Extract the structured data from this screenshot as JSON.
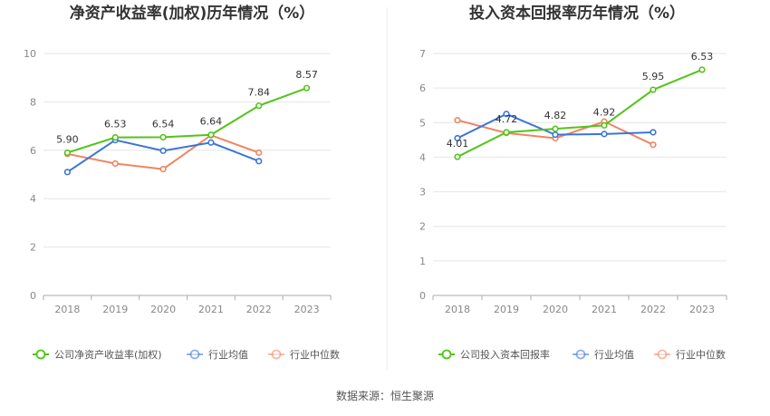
{
  "source_label": "数据来源：恒生聚源",
  "colors": {
    "company": "#52c41a",
    "average": "#3a75d9",
    "median": "#f0845f"
  },
  "chart_data": [
    {
      "type": "line",
      "title": "净资产收益率(加权)历年情况（%）",
      "categories": [
        "2018",
        "2019",
        "2020",
        "2021",
        "2022",
        "2023"
      ],
      "ylim": [
        0,
        10
      ],
      "yticks": [
        0,
        2,
        4,
        6,
        8,
        10
      ],
      "grid": true,
      "legend_position": "bottom",
      "series": [
        {
          "name": "公司净资产收益率(加权)",
          "role": "company",
          "values": [
            5.9,
            6.53,
            6.54,
            6.64,
            7.84,
            8.57
          ],
          "labels": [
            "5.90",
            "6.53",
            "6.54",
            "6.64",
            "7.84",
            "8.57"
          ]
        },
        {
          "name": "行业均值",
          "role": "average",
          "values": [
            5.1,
            6.42,
            5.98,
            6.32,
            5.55,
            null
          ]
        },
        {
          "name": "行业中位数",
          "role": "median",
          "values": [
            5.85,
            5.45,
            5.22,
            6.62,
            5.9,
            null
          ]
        }
      ]
    },
    {
      "type": "line",
      "title": "投入资本回报率历年情况（%）",
      "categories": [
        "2018",
        "2019",
        "2020",
        "2021",
        "2022",
        "2023"
      ],
      "ylim": [
        0,
        7
      ],
      "yticks": [
        0,
        1,
        2,
        3,
        4,
        5,
        6,
        7
      ],
      "grid": true,
      "legend_position": "bottom",
      "series": [
        {
          "name": "公司投入资本回报率",
          "role": "company",
          "values": [
            4.01,
            4.72,
            4.82,
            4.92,
            5.95,
            6.53
          ],
          "labels": [
            "4.01",
            "4.72",
            "4.82",
            "4.92",
            "5.95",
            "6.53"
          ]
        },
        {
          "name": "行业均值",
          "role": "average",
          "values": [
            4.55,
            5.25,
            4.65,
            4.67,
            4.72,
            null
          ]
        },
        {
          "name": "行业中位数",
          "role": "median",
          "values": [
            5.07,
            4.7,
            4.55,
            5.03,
            4.36,
            null
          ]
        }
      ]
    }
  ]
}
